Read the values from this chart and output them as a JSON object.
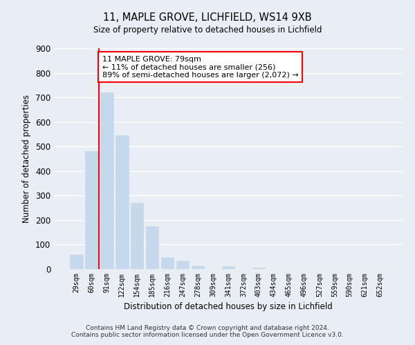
{
  "title_line1": "11, MAPLE GROVE, LICHFIELD, WS14 9XB",
  "title_line2": "Size of property relative to detached houses in Lichfield",
  "xlabel": "Distribution of detached houses by size in Lichfield",
  "ylabel": "Number of detached properties",
  "categories": [
    "29sqm",
    "60sqm",
    "91sqm",
    "122sqm",
    "154sqm",
    "185sqm",
    "216sqm",
    "247sqm",
    "278sqm",
    "309sqm",
    "341sqm",
    "372sqm",
    "403sqm",
    "434sqm",
    "465sqm",
    "496sqm",
    "527sqm",
    "559sqm",
    "590sqm",
    "621sqm",
    "652sqm"
  ],
  "values": [
    60,
    480,
    720,
    545,
    270,
    175,
    48,
    35,
    15,
    0,
    12,
    0,
    7,
    0,
    0,
    0,
    0,
    0,
    0,
    0,
    0
  ],
  "bar_color": "#c5d8ec",
  "bar_edge_color": "#c5d8ec",
  "vline_color": "red",
  "ylim": [
    0,
    900
  ],
  "yticks": [
    0,
    100,
    200,
    300,
    400,
    500,
    600,
    700,
    800,
    900
  ],
  "annotation_title": "11 MAPLE GROVE: 79sqm",
  "annotation_line2": "← 11% of detached houses are smaller (256)",
  "annotation_line3": "89% of semi-detached houses are larger (2,072) →",
  "box_color": "white",
  "box_edge_color": "red",
  "footer_line1": "Contains HM Land Registry data © Crown copyright and database right 2024.",
  "footer_line2": "Contains public sector information licensed under the Open Government Licence v3.0.",
  "bg_color": "#e8eef4",
  "grid_color": "white"
}
